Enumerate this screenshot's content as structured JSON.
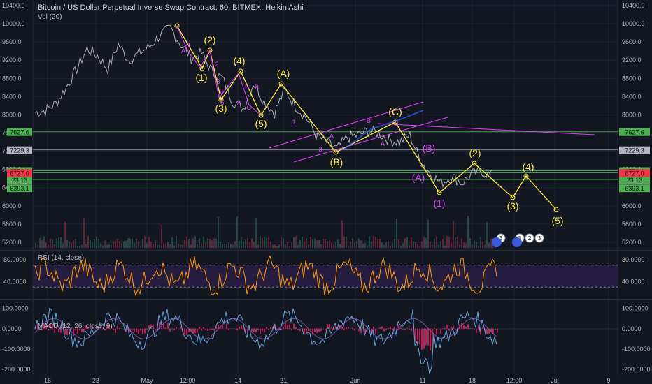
{
  "header": {
    "title": "Bitcoin / US Dollar Perpetual Inverse Swap Contract, 60, BITMEX, Heikin Ashi",
    "volume": "Vol (20)"
  },
  "rsi_label": "RSI (14, close)",
  "macd_label": "MACD (12, 26, close, 9)",
  "colors": {
    "background": "#131722",
    "grid": "#1f2330",
    "wave_yellow": "#ffeb3b",
    "wave_magenta": "#e040fb",
    "green_level": "#4caf50",
    "price_line": "#c8c8c8",
    "rsi_line": "#ff9800",
    "rsi_band": "#2a1f46",
    "macd_line": "#5ea5d5",
    "histogram": "#e91e63"
  },
  "price_axis": {
    "ticks": [
      "10400.0",
      "10000.0",
      "9600.0",
      "9200.0",
      "8800.0",
      "8400.0",
      "8000.0",
      "7600.0",
      "7200.0",
      "6800.0",
      "6400.0",
      "6000.0",
      "5600.0",
      "5200.0"
    ],
    "left_labels": [
      {
        "text": "7627.6",
        "bg": "#4caf50",
        "value": 7627.6
      },
      {
        "text": "7229.3",
        "bg": "#b2b5be",
        "value": 7229.3
      },
      {
        "text": "6772.3",
        "bg": "#4caf50",
        "value": 6772.3
      },
      {
        "text": "6726.0",
        "bg": "#4caf50",
        "value": 6726.0
      },
      {
        "text": "23:13",
        "bg": "#4caf50",
        "value": 6580
      },
      {
        "text": "6718.6",
        "bg": "#4caf50",
        "value": 6718.6
      },
      {
        "text": "6727.0",
        "bg": "#f23645",
        "value": 6727.0
      },
      {
        "text": "6393.1",
        "bg": "#4caf50",
        "value": 6393.1
      }
    ]
  },
  "rsi_axis": {
    "ticks": [
      "80.0000",
      "40.0000"
    ]
  },
  "macd_axis": {
    "ticks": [
      "100.0000",
      "0.0000",
      "-100.0000",
      "-200.0000"
    ]
  },
  "time_axis": {
    "ticks": [
      "16",
      "23",
      "May",
      "12:00",
      "14",
      "21",
      "Jun",
      "11",
      "18",
      "12:00",
      "Jul",
      "9"
    ]
  },
  "wave_labels": [
    {
      "text": "(1)",
      "color": "yellow"
    },
    {
      "text": "(2)",
      "color": "yellow"
    },
    {
      "text": "(3)",
      "color": "yellow"
    },
    {
      "text": "(4)",
      "color": "yellow"
    },
    {
      "text": "(5)",
      "color": "yellow"
    },
    {
      "text": "(A)",
      "color": "yellow"
    },
    {
      "text": "(B)",
      "color": "yellow"
    },
    {
      "text": "(C)",
      "color": "yellow"
    },
    {
      "text": "(2)",
      "color": "yellow"
    },
    {
      "text": "(4)",
      "color": "yellow"
    },
    {
      "text": "(3)",
      "color": "yellow"
    },
    {
      "text": "(5)",
      "color": "yellow"
    },
    {
      "text": "(B)",
      "color": "magenta"
    },
    {
      "text": "(A)",
      "color": "magenta"
    },
    {
      "text": "(1)",
      "color": "magenta"
    }
  ],
  "sub_labels": [
    "B",
    "A",
    "2",
    "3",
    "4",
    "5",
    "B",
    "A",
    "B",
    "C",
    "1",
    "3",
    "A",
    "B",
    "A",
    "5"
  ],
  "badges": [
    "3",
    "3",
    "2",
    "3"
  ],
  "chart_data": {
    "type": "line",
    "title": "Bitcoin / US Dollar Perpetual Inverse Swap Contract, 60, BITMEX, Heikin Ashi",
    "x_ticks": [
      "16",
      "23",
      "May",
      "12:00",
      "14",
      "21",
      "Jun",
      "11",
      "18",
      "12:00",
      "Jul",
      "9"
    ],
    "ylim": [
      5000,
      10400
    ],
    "y_ticks": [
      10400,
      10000,
      9600,
      9200,
      8800,
      8400,
      8000,
      7600,
      7200,
      6800,
      6400,
      6000,
      5600,
      5200
    ],
    "price_path": [
      8050,
      8100,
      8250,
      8600,
      9000,
      9450,
      9300,
      9000,
      9550,
      9200,
      9350,
      9500,
      9750,
      9900,
      9550,
      9250,
      9350,
      8950,
      8800,
      8300,
      8150,
      8700,
      8300,
      8050,
      8550,
      8200,
      7950,
      7550,
      7400,
      7250,
      7500,
      7550,
      7650,
      7600,
      7450,
      7400,
      7550,
      7000,
      6700,
      6500,
      6650,
      6500,
      6700,
      6750,
      6650
    ],
    "yellow_wave": {
      "name": "impulse",
      "points": [
        [
          1,
          9950
        ],
        [
          2,
          9270
        ],
        [
          3,
          9500
        ],
        [
          4,
          8270
        ],
        [
          5,
          8850
        ],
        [
          6,
          7900
        ],
        [
          7,
          8600
        ],
        [
          8,
          7220
        ],
        [
          9,
          7700
        ],
        [
          10,
          6300
        ],
        [
          11,
          6800
        ],
        [
          12,
          6700
        ],
        [
          13,
          6350
        ],
        [
          14,
          6450
        ],
        [
          15,
          5800
        ]
      ]
    },
    "magenta_wave": {
      "points": [
        [
          1,
          9950
        ],
        [
          2,
          9300
        ],
        [
          3,
          8900
        ],
        [
          4,
          8200
        ],
        [
          5,
          8600
        ],
        [
          6,
          8000
        ],
        [
          7,
          8500
        ]
      ]
    },
    "horizontal_levels": [
      7627.6,
      7229.3,
      6772.3,
      6726.0,
      6580
    ],
    "rsi": {
      "ylim": [
        10,
        95
      ],
      "band": [
        30,
        70
      ]
    },
    "macd": {
      "ylim": [
        -220,
        140
      ]
    }
  }
}
